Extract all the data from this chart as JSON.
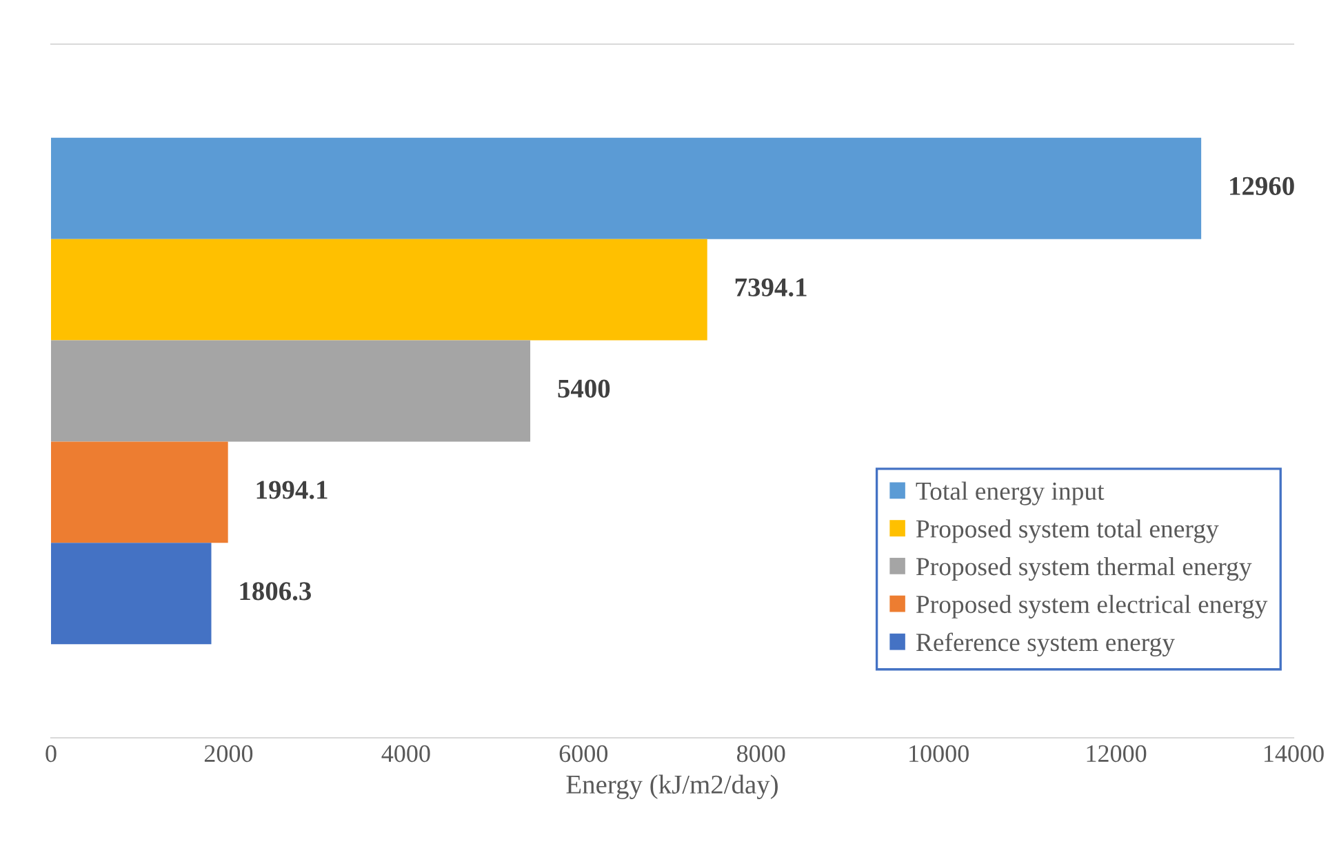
{
  "chart_data": {
    "type": "bar",
    "orientation": "horizontal",
    "categories": [
      null
    ],
    "series": [
      {
        "name": "Total energy input",
        "color": "#5b9bd5",
        "values": [
          12960
        ]
      },
      {
        "name": "Proposed system total energy",
        "color": "#ffc000",
        "values": [
          7394.1
        ]
      },
      {
        "name": "Proposed system thermal energy",
        "color": "#a5a5a5",
        "values": [
          5400
        ]
      },
      {
        "name": "Proposed system electrical energy",
        "color": "#ed7d31",
        "values": [
          1994.1
        ]
      },
      {
        "name": "Reference system energy",
        "color": "#4472c4",
        "values": [
          1806.3
        ]
      }
    ],
    "xlabel": "Energy (kJ/m2/day)",
    "xlim": [
      0,
      14000
    ],
    "xticks": [
      0,
      2000,
      4000,
      6000,
      8000,
      10000,
      12000,
      14000
    ],
    "data_labels": true,
    "legend": "lower right",
    "grid": false
  }
}
